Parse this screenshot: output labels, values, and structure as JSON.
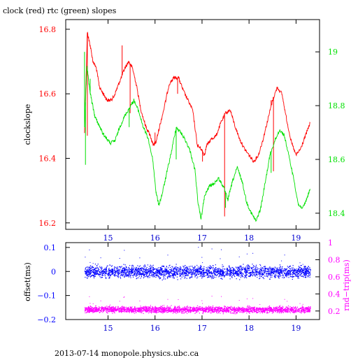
{
  "title": "clock (red) rtc (green) slopes",
  "footer": "2013-07-14  monopole.physics.ubc.ca",
  "colors": {
    "axis": "#000000",
    "clock": "#ff0000",
    "rtc": "#00e000",
    "offset": "#0000ff",
    "roundtrip": "#ff00ff",
    "tick_x": "#0000d0"
  },
  "chart_data": [
    {
      "type": "line",
      "title": "clock (red) rtc (green) slopes",
      "xlabel": "",
      "ylabel": "clockslope",
      "xlim": [
        14.1,
        19.5
      ],
      "ylim": [
        16.18,
        16.83
      ],
      "y2lim": [
        18.34,
        19.12
      ],
      "x_ticks": [
        15,
        16,
        17,
        18,
        19
      ],
      "y_ticks": [
        16.2,
        16.4,
        16.6,
        16.8
      ],
      "y2_ticks": [
        18.4,
        18.6,
        18.8,
        19
      ],
      "x_tick_labels": [
        "15",
        "16",
        "17",
        "18",
        "19"
      ],
      "y_tick_labels": [
        "16.2",
        "16.4",
        "16.6",
        "16.8"
      ],
      "y2_tick_labels": [
        "18.4",
        "18.6",
        "18.8",
        "19"
      ],
      "grid": false,
      "series": [
        {
          "name": "clock",
          "axis": "left",
          "x": [
            14.5,
            14.56,
            14.62,
            14.68,
            14.75,
            14.82,
            14.9,
            14.98,
            15.05,
            15.12,
            15.2,
            15.28,
            15.36,
            15.44,
            15.52,
            15.6,
            15.7,
            15.8,
            15.9,
            15.96,
            16.02,
            16.1,
            16.2,
            16.3,
            16.4,
            16.5,
            16.6,
            16.7,
            16.8,
            16.9,
            16.98,
            17.05,
            17.1,
            17.2,
            17.3,
            17.4,
            17.5,
            17.6,
            17.7,
            17.8,
            17.9,
            18.0,
            18.1,
            18.2,
            18.3,
            18.4,
            18.5,
            18.6,
            18.7,
            18.8,
            18.9,
            19.0,
            19.1,
            19.2,
            19.3
          ],
          "y": [
            16.48,
            16.79,
            16.75,
            16.7,
            16.68,
            16.62,
            16.6,
            16.58,
            16.58,
            16.59,
            16.62,
            16.65,
            16.68,
            16.7,
            16.68,
            16.63,
            16.55,
            16.5,
            16.47,
            16.44,
            16.45,
            16.5,
            16.56,
            16.63,
            16.65,
            16.65,
            16.61,
            16.58,
            16.55,
            16.44,
            16.43,
            16.41,
            16.44,
            16.46,
            16.47,
            16.51,
            16.54,
            16.55,
            16.5,
            16.46,
            16.43,
            16.41,
            16.39,
            16.41,
            16.46,
            16.52,
            16.58,
            16.62,
            16.6,
            16.52,
            16.45,
            16.41,
            16.43,
            16.47,
            16.51
          ],
          "spikes": [
            {
              "x": 14.51,
              "y": 16.55
            },
            {
              "x": 14.56,
              "y": 16.47
            },
            {
              "x": 15.3,
              "y": 16.75
            },
            {
              "x": 15.47,
              "y": 16.54
            },
            {
              "x": 16.0,
              "y": 16.48
            },
            {
              "x": 16.48,
              "y": 16.6
            },
            {
              "x": 17.01,
              "y": 16.39
            },
            {
              "x": 17.48,
              "y": 16.22
            },
            {
              "x": 18.47,
              "y": 16.58
            },
            {
              "x": 18.52,
              "y": 16.36
            }
          ]
        },
        {
          "name": "rtc",
          "axis": "right",
          "x": [
            14.5,
            14.55,
            14.6,
            14.65,
            14.72,
            14.8,
            14.88,
            14.96,
            15.05,
            15.15,
            15.25,
            15.35,
            15.45,
            15.55,
            15.65,
            15.75,
            15.85,
            15.95,
            16.02,
            16.08,
            16.15,
            16.25,
            16.35,
            16.45,
            16.55,
            16.65,
            16.75,
            16.85,
            16.92,
            16.98,
            17.05,
            17.15,
            17.25,
            17.35,
            17.45,
            17.55,
            17.65,
            17.75,
            17.85,
            17.95,
            18.05,
            18.15,
            18.25,
            18.35,
            18.45,
            18.55,
            18.65,
            18.75,
            18.85,
            18.95,
            19.05,
            19.15,
            19.22,
            19.3
          ],
          "y": [
            18.72,
            18.95,
            18.87,
            18.82,
            18.76,
            18.73,
            18.7,
            18.68,
            18.66,
            18.67,
            18.72,
            18.76,
            18.79,
            18.82,
            18.78,
            18.72,
            18.68,
            18.6,
            18.48,
            18.43,
            18.47,
            18.55,
            18.63,
            18.72,
            18.7,
            18.67,
            18.63,
            18.56,
            18.43,
            18.38,
            18.46,
            18.5,
            18.51,
            18.53,
            18.5,
            18.45,
            18.52,
            18.57,
            18.52,
            18.44,
            18.4,
            18.37,
            18.42,
            18.52,
            18.62,
            18.67,
            18.71,
            18.69,
            18.61,
            18.53,
            18.43,
            18.42,
            18.45,
            18.49
          ],
          "spikes": [
            {
              "x": 14.5,
              "y": 19.0
            },
            {
              "x": 14.52,
              "y": 18.58
            },
            {
              "x": 14.62,
              "y": 18.9
            },
            {
              "x": 15.45,
              "y": 18.72
            },
            {
              "x": 16.45,
              "y": 18.6
            },
            {
              "x": 17.5,
              "y": 18.42
            },
            {
              "x": 18.47,
              "y": 18.55
            }
          ]
        }
      ]
    },
    {
      "type": "scatter",
      "xlabel": "",
      "ylabel": "offset(ms)",
      "y2label": "rnd−trip(ms)",
      "xlim": [
        14.1,
        19.5
      ],
      "ylim": [
        -0.2,
        0.12
      ],
      "y2lim": [
        0.1,
        1.0
      ],
      "x_ticks": [
        15,
        16,
        17,
        18,
        19
      ],
      "y_ticks": [
        -0.2,
        -0.1,
        0,
        0.1
      ],
      "y2_ticks": [
        0.2,
        0.4,
        0.6,
        0.8,
        1
      ],
      "x_tick_labels": [
        "15",
        "16",
        "17",
        "18",
        "19"
      ],
      "y_tick_labels": [
        "−0.2",
        "−0.1",
        "0",
        "0.1"
      ],
      "y2_tick_labels": [
        "0.2",
        "0.4",
        "0.6",
        "0.8",
        "1"
      ],
      "grid": false,
      "series": [
        {
          "name": "offset",
          "axis": "left",
          "x_range": [
            14.5,
            19.3
          ],
          "center": 0.0,
          "spread": 0.02,
          "outlier_range": [
            -0.03,
            0.11
          ]
        },
        {
          "name": "rnd-trip",
          "axis": "right",
          "x_range": [
            14.5,
            19.3
          ],
          "center": 0.22,
          "spread": 0.03,
          "outlier_range": [
            0.19,
            0.4
          ]
        }
      ]
    }
  ]
}
